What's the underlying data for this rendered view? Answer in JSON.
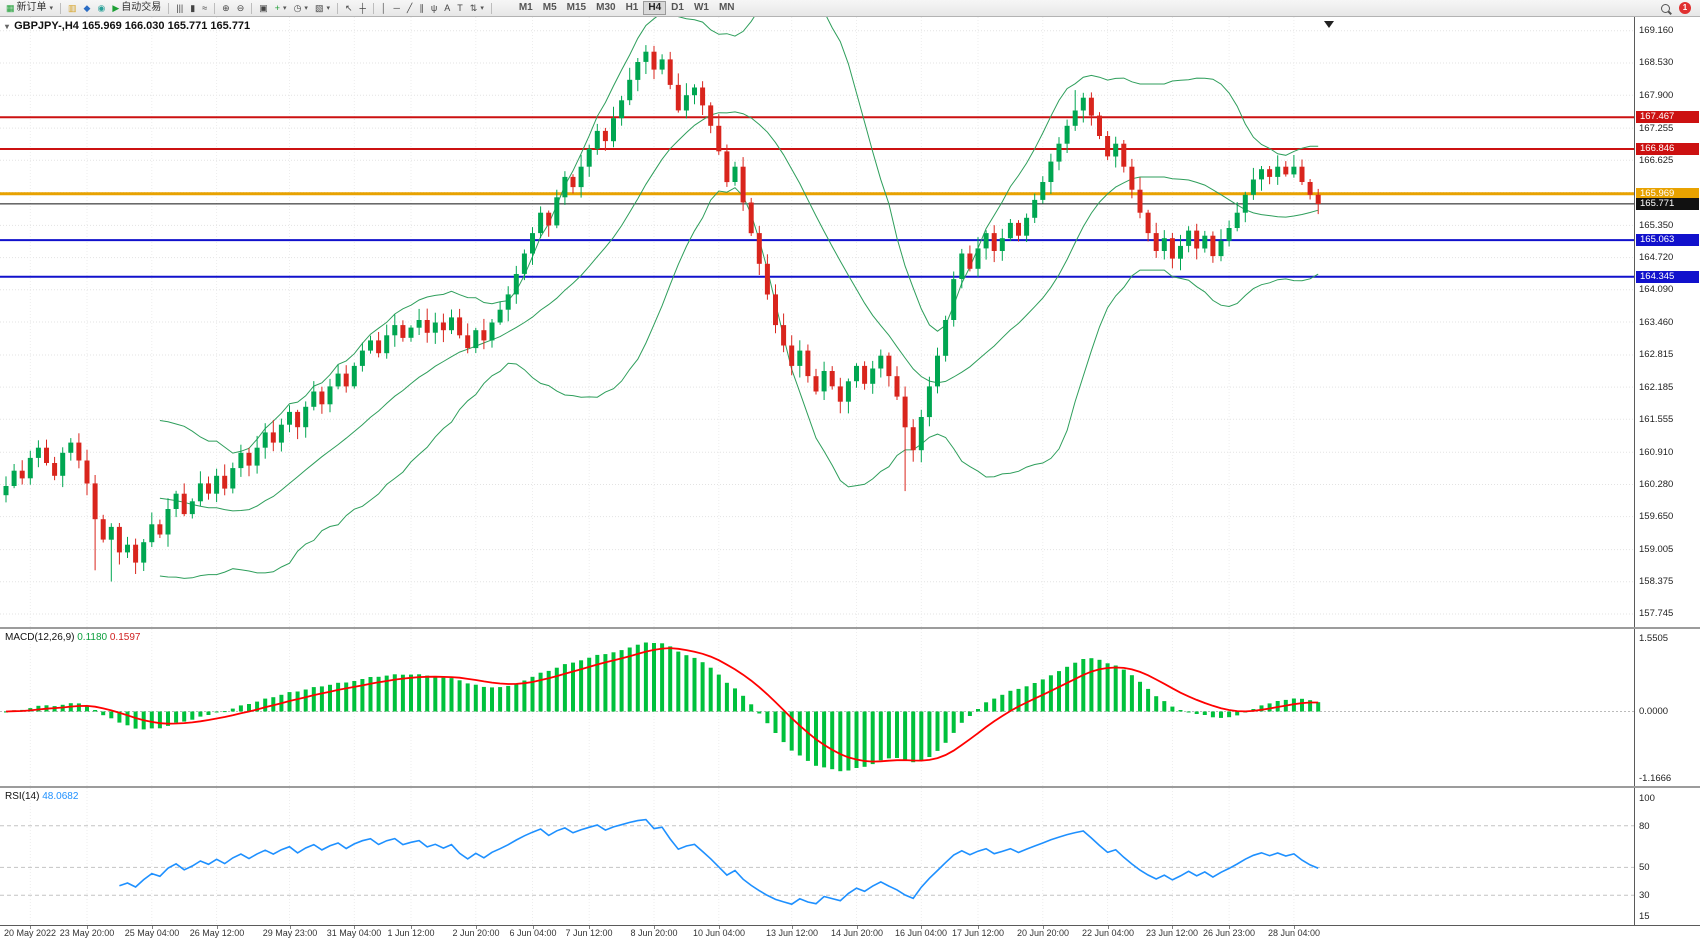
{
  "toolbar": {
    "new_order_label": "新订单",
    "autotrading_label": "自动交易",
    "timeframes": [
      "M1",
      "M5",
      "M15",
      "M30",
      "H1",
      "H4",
      "D1",
      "W1",
      "MN"
    ],
    "active_timeframe": "H4",
    "badge_count": "1"
  },
  "icons": {
    "new-order": "▦",
    "charts": "▥",
    "market-watch": "◆",
    "navigator": "◉",
    "play": "▶",
    "bars": "|||",
    "candles": "▮",
    "line-chart": "≈",
    "zoom-in": "⊕",
    "zoom-out": "⊖",
    "tile-windows": "▣",
    "indicators": "+",
    "periods": "◷",
    "templates": "▧",
    "cursor": "↖",
    "crosshair": "┼",
    "vline": "│",
    "hline": "─",
    "trendline": "╱",
    "channel": "∥",
    "fibonacci": "ψ",
    "text": "A",
    "text-label": "T",
    "arrows": "⇅",
    "caret": "▾"
  },
  "chart": {
    "symbol_label": "GBPJPY-,H4",
    "ohlc_text": "165.969 166.030 165.771 165.771"
  },
  "colors": {
    "up": "#00a651",
    "down": "#d9251d",
    "bollinger": "#2e9e5b",
    "macd_hist": "#00c13c",
    "macd_signal": "#ff0000",
    "rsi": "#1e90ff",
    "level_red": "#cc1111",
    "level_orange": "#e8a200",
    "level_blue": "#1111cc",
    "current": "#111111"
  },
  "chart_data": {
    "type": "candlestick",
    "title": "GBPJPY H4 candlestick chart with Bollinger Bands, MACD(12,26,9) and RSI(14)",
    "symbol": "GBPJPY",
    "timeframe": "H4",
    "ohlc_display": {
      "open": "165.969",
      "high": "166.030",
      "low": "165.771",
      "close": "165.771"
    },
    "price_ylim": [
      157.49,
      169.43
    ],
    "price_axis_labels": [
      "169.160",
      "168.530",
      "167.900",
      "167.255",
      "166.625",
      "165.995",
      "165.350",
      "164.720",
      "164.090",
      "163.460",
      "162.815",
      "162.185",
      "161.555",
      "160.910",
      "160.280",
      "159.650",
      "159.005",
      "158.375",
      "157.745"
    ],
    "closes": [
      160.25,
      160.55,
      160.4,
      160.8,
      161.0,
      160.7,
      160.45,
      160.9,
      161.1,
      160.75,
      160.3,
      159.6,
      159.2,
      159.45,
      158.95,
      159.1,
      158.75,
      159.15,
      159.5,
      159.3,
      159.8,
      160.1,
      159.7,
      159.95,
      160.3,
      160.1,
      160.45,
      160.2,
      160.6,
      160.9,
      160.65,
      161.0,
      161.3,
      161.1,
      161.45,
      161.7,
      161.4,
      161.8,
      162.1,
      161.85,
      162.2,
      162.45,
      162.2,
      162.6,
      162.9,
      163.1,
      162.85,
      163.2,
      163.4,
      163.15,
      163.35,
      163.5,
      163.25,
      163.45,
      163.3,
      163.55,
      163.2,
      162.95,
      163.3,
      163.1,
      163.45,
      163.7,
      164.0,
      164.4,
      164.8,
      165.2,
      165.6,
      165.35,
      165.9,
      166.3,
      166.1,
      166.5,
      166.85,
      167.2,
      167.0,
      167.45,
      167.8,
      168.2,
      168.55,
      168.75,
      168.4,
      168.6,
      168.1,
      167.6,
      167.9,
      168.05,
      167.7,
      167.3,
      166.8,
      166.2,
      166.5,
      165.8,
      165.2,
      164.6,
      164.0,
      163.4,
      163.0,
      162.6,
      162.9,
      162.4,
      162.1,
      162.5,
      162.2,
      161.9,
      162.3,
      162.6,
      162.25,
      162.55,
      162.8,
      162.4,
      162.0,
      161.4,
      160.95,
      161.6,
      162.2,
      162.8,
      163.5,
      164.3,
      164.8,
      164.5,
      164.9,
      165.2,
      164.85,
      165.1,
      165.4,
      165.15,
      165.5,
      165.85,
      166.2,
      166.6,
      166.95,
      167.3,
      167.6,
      167.85,
      167.5,
      167.1,
      166.7,
      166.95,
      166.5,
      166.05,
      165.6,
      165.2,
      164.85,
      165.1,
      164.7,
      164.95,
      165.25,
      164.9,
      165.15,
      164.75,
      165.05,
      165.3,
      165.6,
      165.95,
      166.25,
      166.45,
      166.3,
      166.5,
      166.35,
      166.5,
      166.2,
      165.95,
      165.77
    ],
    "wick_overrides": {
      "11": {
        "low": 158.6
      },
      "13": {
        "low": 158.38
      },
      "79": {
        "high": 168.88
      },
      "81": {
        "high": 168.7
      },
      "111": {
        "low": 160.15
      },
      "132": {
        "high": 168.0
      }
    },
    "levels": [
      {
        "price": 167.467,
        "label": "167.467",
        "color": "#cc1111",
        "width": 2
      },
      {
        "price": 166.846,
        "label": "166.846",
        "color": "#cc1111",
        "width": 2
      },
      {
        "price": 165.969,
        "label": "165.969",
        "color": "#e8a200",
        "width": 3
      },
      {
        "price": 165.771,
        "label": "165.771",
        "color": "#111111",
        "width": 1,
        "current": true
      },
      {
        "price": 165.063,
        "label": "165.063",
        "color": "#1111cc",
        "width": 2
      },
      {
        "price": 164.345,
        "label": "164.345",
        "color": "#1111cc",
        "width": 2
      }
    ],
    "bollinger": {
      "period": 20,
      "deviation": 2
    },
    "macd": {
      "label": "MACD(12,26,9)",
      "fast": 12,
      "slow": 26,
      "signal": 9,
      "value_main": "0.1180",
      "value_signal": "0.1597",
      "axis_labels": [
        "1.5505",
        "0.0000",
        "-1.1666"
      ]
    },
    "rsi": {
      "label": "RSI(14)",
      "period": 14,
      "value": "48.0682",
      "ylim": [
        15,
        100
      ],
      "axis_labels": [
        "100",
        "80",
        "50",
        "30",
        "15"
      ],
      "levels": [
        80,
        50,
        30
      ]
    },
    "time_labels": [
      {
        "t": "20 May 2022",
        "i": 3
      },
      {
        "t": "23 May 20:00",
        "i": 10
      },
      {
        "t": "25 May 04:00",
        "i": 18
      },
      {
        "t": "26 May 12:00",
        "i": 26
      },
      {
        "t": "29 May 23:00",
        "i": 35
      },
      {
        "t": "31 May 04:00",
        "i": 43
      },
      {
        "t": "1 Jun 12:00",
        "i": 50
      },
      {
        "t": "2 Jun 20:00",
        "i": 58
      },
      {
        "t": "6 Jun 04:00",
        "i": 65
      },
      {
        "t": "7 Jun 12:00",
        "i": 72
      },
      {
        "t": "8 Jun 20:00",
        "i": 80
      },
      {
        "t": "10 Jun 04:00",
        "i": 88
      },
      {
        "t": "13 Jun 12:00",
        "i": 97
      },
      {
        "t": "14 Jun 20:00",
        "i": 105
      },
      {
        "t": "16 Jun 04:00",
        "i": 113
      },
      {
        "t": "17 Jun 12:00",
        "i": 120
      },
      {
        "t": "20 Jun 20:00",
        "i": 128
      },
      {
        "t": "22 Jun 04:00",
        "i": 136
      },
      {
        "t": "23 Jun 12:00",
        "i": 144
      },
      {
        "t": "26 Jun 23:00",
        "i": 151
      },
      {
        "t": "28 Jun 04:00",
        "i": 159
      }
    ]
  }
}
